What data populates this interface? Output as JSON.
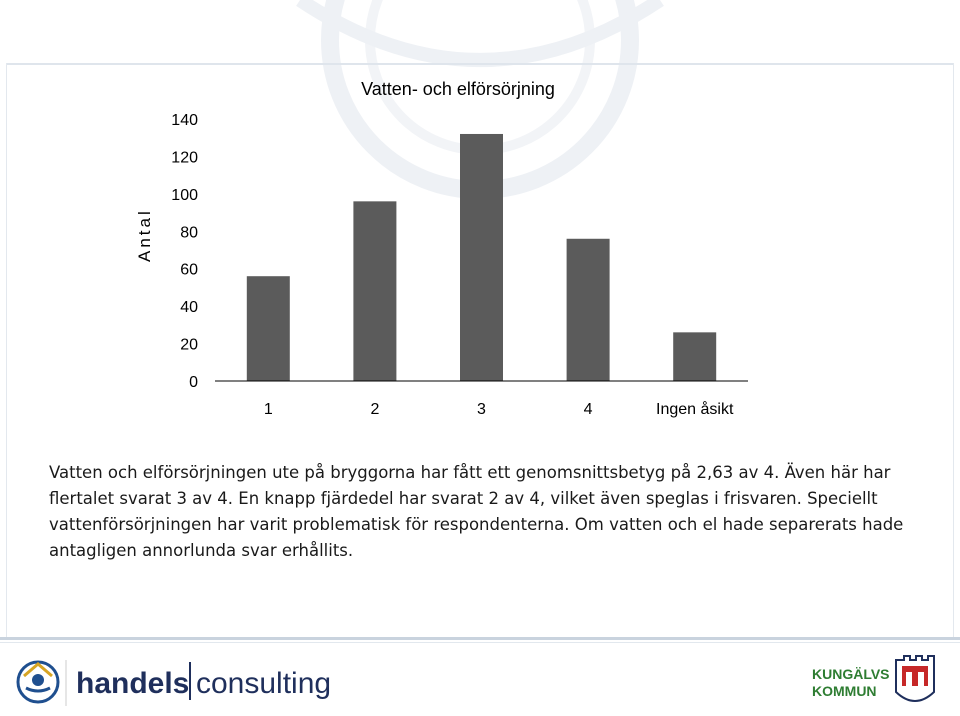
{
  "chart_data": {
    "type": "bar",
    "title": "Vatten- och elförsörjning",
    "ylabel": "Antal",
    "xlabel": "",
    "categories": [
      "1",
      "2",
      "3",
      "4",
      "Ingen åsikt"
    ],
    "values": [
      56,
      96,
      132,
      76,
      26
    ],
    "ylim": [
      0,
      140
    ],
    "yticks": [
      0,
      20,
      40,
      60,
      80,
      100,
      120,
      140
    ],
    "grid": false,
    "bar_color": "#5b5b5b"
  },
  "caption": {
    "lines": [
      "Vatten och elförsörjningen ute på bryggorna har fått ett genomsnittsbetyg på 2,63 av 4. Även här har",
      "flertalet svarat 3 av 4. En knapp fjärdedel har svarat 2 av 4, vilket även speglas i frisvaren. Speciellt",
      "vattenförsörjningen har varit problematisk för respondenterna. Om vatten och el hade separerats hade",
      "antagligen annorlunda svar erhållits."
    ]
  },
  "footer": {
    "left_logo_text": "handels|consulting",
    "left_logo_word1": "handels",
    "left_logo_word2": "consulting",
    "right_logo_line1": "KUNGÄLVS",
    "right_logo_line2": "KOMMUN",
    "brand_green": "#2e7d32",
    "brand_navy": "#1f2f5c"
  }
}
